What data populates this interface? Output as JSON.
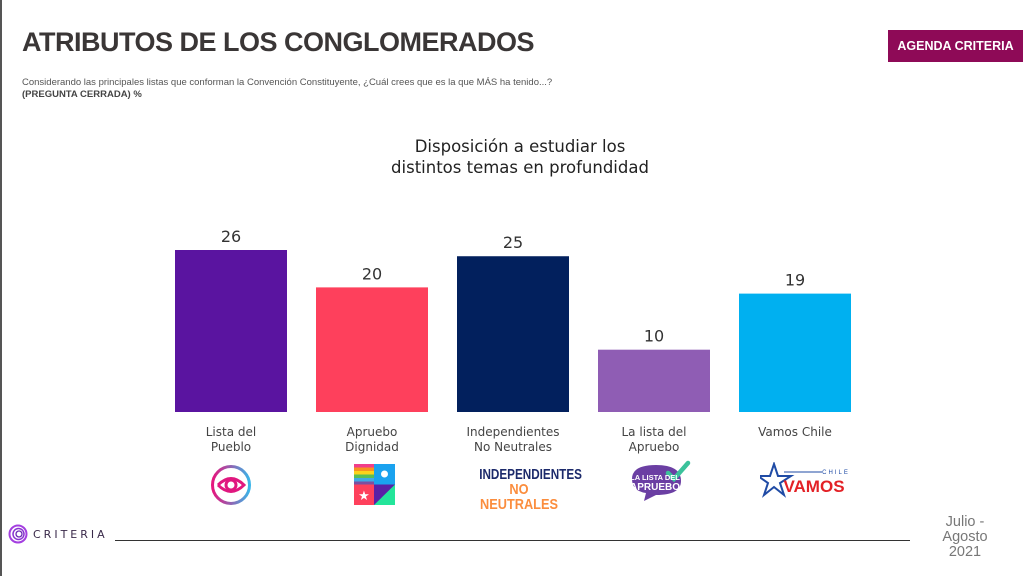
{
  "header": {
    "title": "ATRIBUTOS DE LOS CONGLOMERADOS",
    "question": "Considerando las principales listas que conforman la Convención Constituyente, ¿Cuál crees que es la que MÁS ha tenido...?",
    "question_type": "(PREGUNTA CERRADA) %",
    "badge": "AGENDA CRITERIA"
  },
  "chart_data": {
    "type": "bar",
    "title": "Disposición a estudiar los distintos temas en profundidad",
    "title_lines": [
      "Disposición a estudiar los",
      "distintos temas en profundidad"
    ],
    "categories": [
      "Lista del Pueblo",
      "Apruebo Dignidad",
      "Independientes No Neutrales",
      "La lista del Apruebo",
      "Vamos Chile"
    ],
    "category_lines": [
      [
        "Lista del",
        "Pueblo"
      ],
      [
        "Apruebo",
        "Dignidad"
      ],
      [
        "Independientes",
        "No Neutrales"
      ],
      [
        "La lista del",
        "Apruebo"
      ],
      [
        "Vamos Chile"
      ]
    ],
    "values": [
      26,
      20,
      25,
      10,
      19
    ],
    "colors": [
      "#5a14a0",
      "#fe405c",
      "#02205d",
      "#8f5db4",
      "#00b0f0"
    ],
    "xlabel": "",
    "ylabel": "",
    "ylim": [
      0,
      26
    ],
    "grid": false,
    "legend": "none",
    "unit": "%"
  },
  "logos": {
    "lista_pueblo": "eye-circle-logo",
    "apruebo_dignidad": "color-blocks-logo",
    "independientes": {
      "line1": "INDEPENDIENTES",
      "line2": "NO NEUTRALES"
    },
    "lista_apruebo": {
      "line1": "LA LISTA DEL",
      "line2": "APRUEBO"
    },
    "vamos_chile": {
      "small": "CHILE",
      "main": "VAMOS"
    }
  },
  "footer": {
    "brand": "CRITERIA",
    "date_lines": [
      "Julio -",
      "Agosto",
      "2021"
    ]
  }
}
